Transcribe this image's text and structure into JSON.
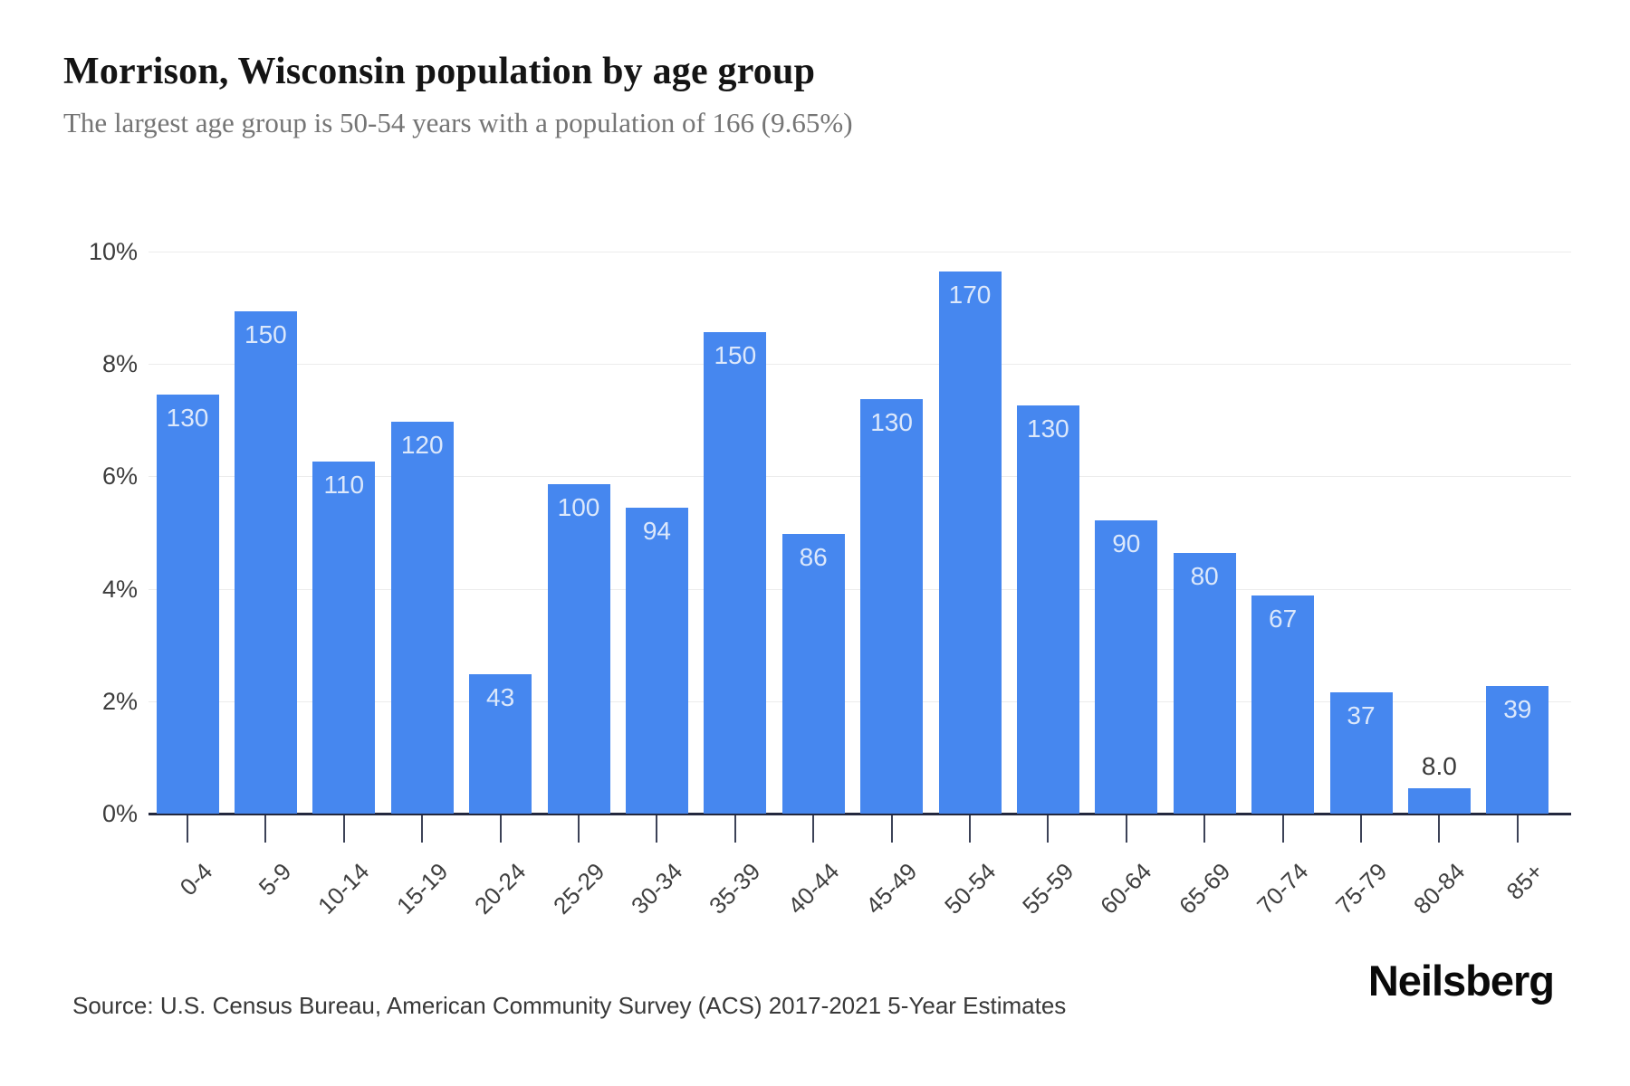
{
  "header": {
    "title": "Morrison, Wisconsin population by age group",
    "subtitle": "The largest age group is 50-54 years with a population of 166 (9.65%)"
  },
  "chart_data": {
    "type": "bar",
    "title": "Morrison, Wisconsin population by age group",
    "xlabel": "",
    "ylabel": "",
    "ylim": [
      0,
      10
    ],
    "y_ticks": [
      0,
      2,
      4,
      6,
      8,
      10
    ],
    "y_tick_suffix": "%",
    "grid": true,
    "legend": false,
    "bar_color": "#4687ef",
    "categories": [
      "0-4",
      "5-9",
      "10-14",
      "15-19",
      "20-24",
      "25-29",
      "30-34",
      "35-39",
      "40-44",
      "45-49",
      "50-54",
      "55-59",
      "60-64",
      "65-69",
      "70-74",
      "75-79",
      "80-84",
      "85+"
    ],
    "values": [
      130,
      150,
      110,
      120,
      43,
      100,
      94,
      150,
      86,
      130,
      170,
      130,
      90,
      80,
      67,
      37,
      8.0,
      39
    ],
    "value_labels": [
      "130",
      "150",
      "110",
      "120",
      "43",
      "100",
      "94",
      "150",
      "86",
      "130",
      "170",
      "130",
      "90",
      "80",
      "67",
      "37",
      "8.0",
      "39"
    ],
    "heights_pct": [
      7.45,
      8.93,
      6.27,
      6.97,
      2.48,
      5.86,
      5.45,
      8.57,
      4.98,
      7.37,
      9.65,
      7.27,
      5.22,
      4.63,
      3.88,
      2.16,
      0.45,
      2.27
    ]
  },
  "footer": {
    "source": "Source: U.S. Census Bureau, American Community Survey (ACS) 2017-2021 5-Year Estimates",
    "brand": "Neilsberg"
  }
}
